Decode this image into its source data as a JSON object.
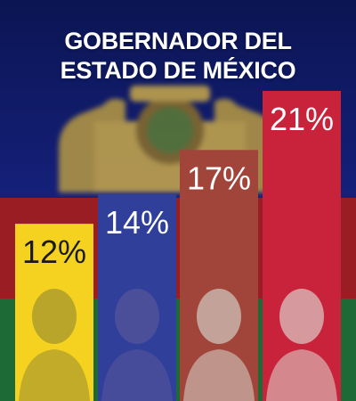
{
  "header": {
    "title_line1": "GOBERNADOR DEL",
    "title_line2": "ESTADO DE MÉXICO"
  },
  "colors": {
    "background_blue": "#15207a",
    "background_red": "#9b1d24",
    "background_green": "#1d6a36",
    "title_text": "#ffffff"
  },
  "chart_data": {
    "type": "bar",
    "title": "GOBERNADOR DEL ESTADO DE MÉXICO",
    "categories": [
      "",
      "",
      "",
      ""
    ],
    "values": [
      12,
      14,
      17,
      21
    ],
    "value_labels": [
      "12%",
      "14%",
      "17%",
      "21%"
    ],
    "bar_colors": [
      "#f4d21f",
      "#2f3f9a",
      "#a1453a",
      "#c8233b"
    ],
    "label_colors": [
      "#1a1a1a",
      "#ffffff",
      "#ffffff",
      "#ffffff"
    ],
    "portrait_tones": [
      "#b8a52a",
      "#4b4f9a",
      "#c3a29a",
      "#d69a9e"
    ],
    "ylim": [
      0,
      21
    ],
    "grid": false,
    "legend": "none"
  }
}
